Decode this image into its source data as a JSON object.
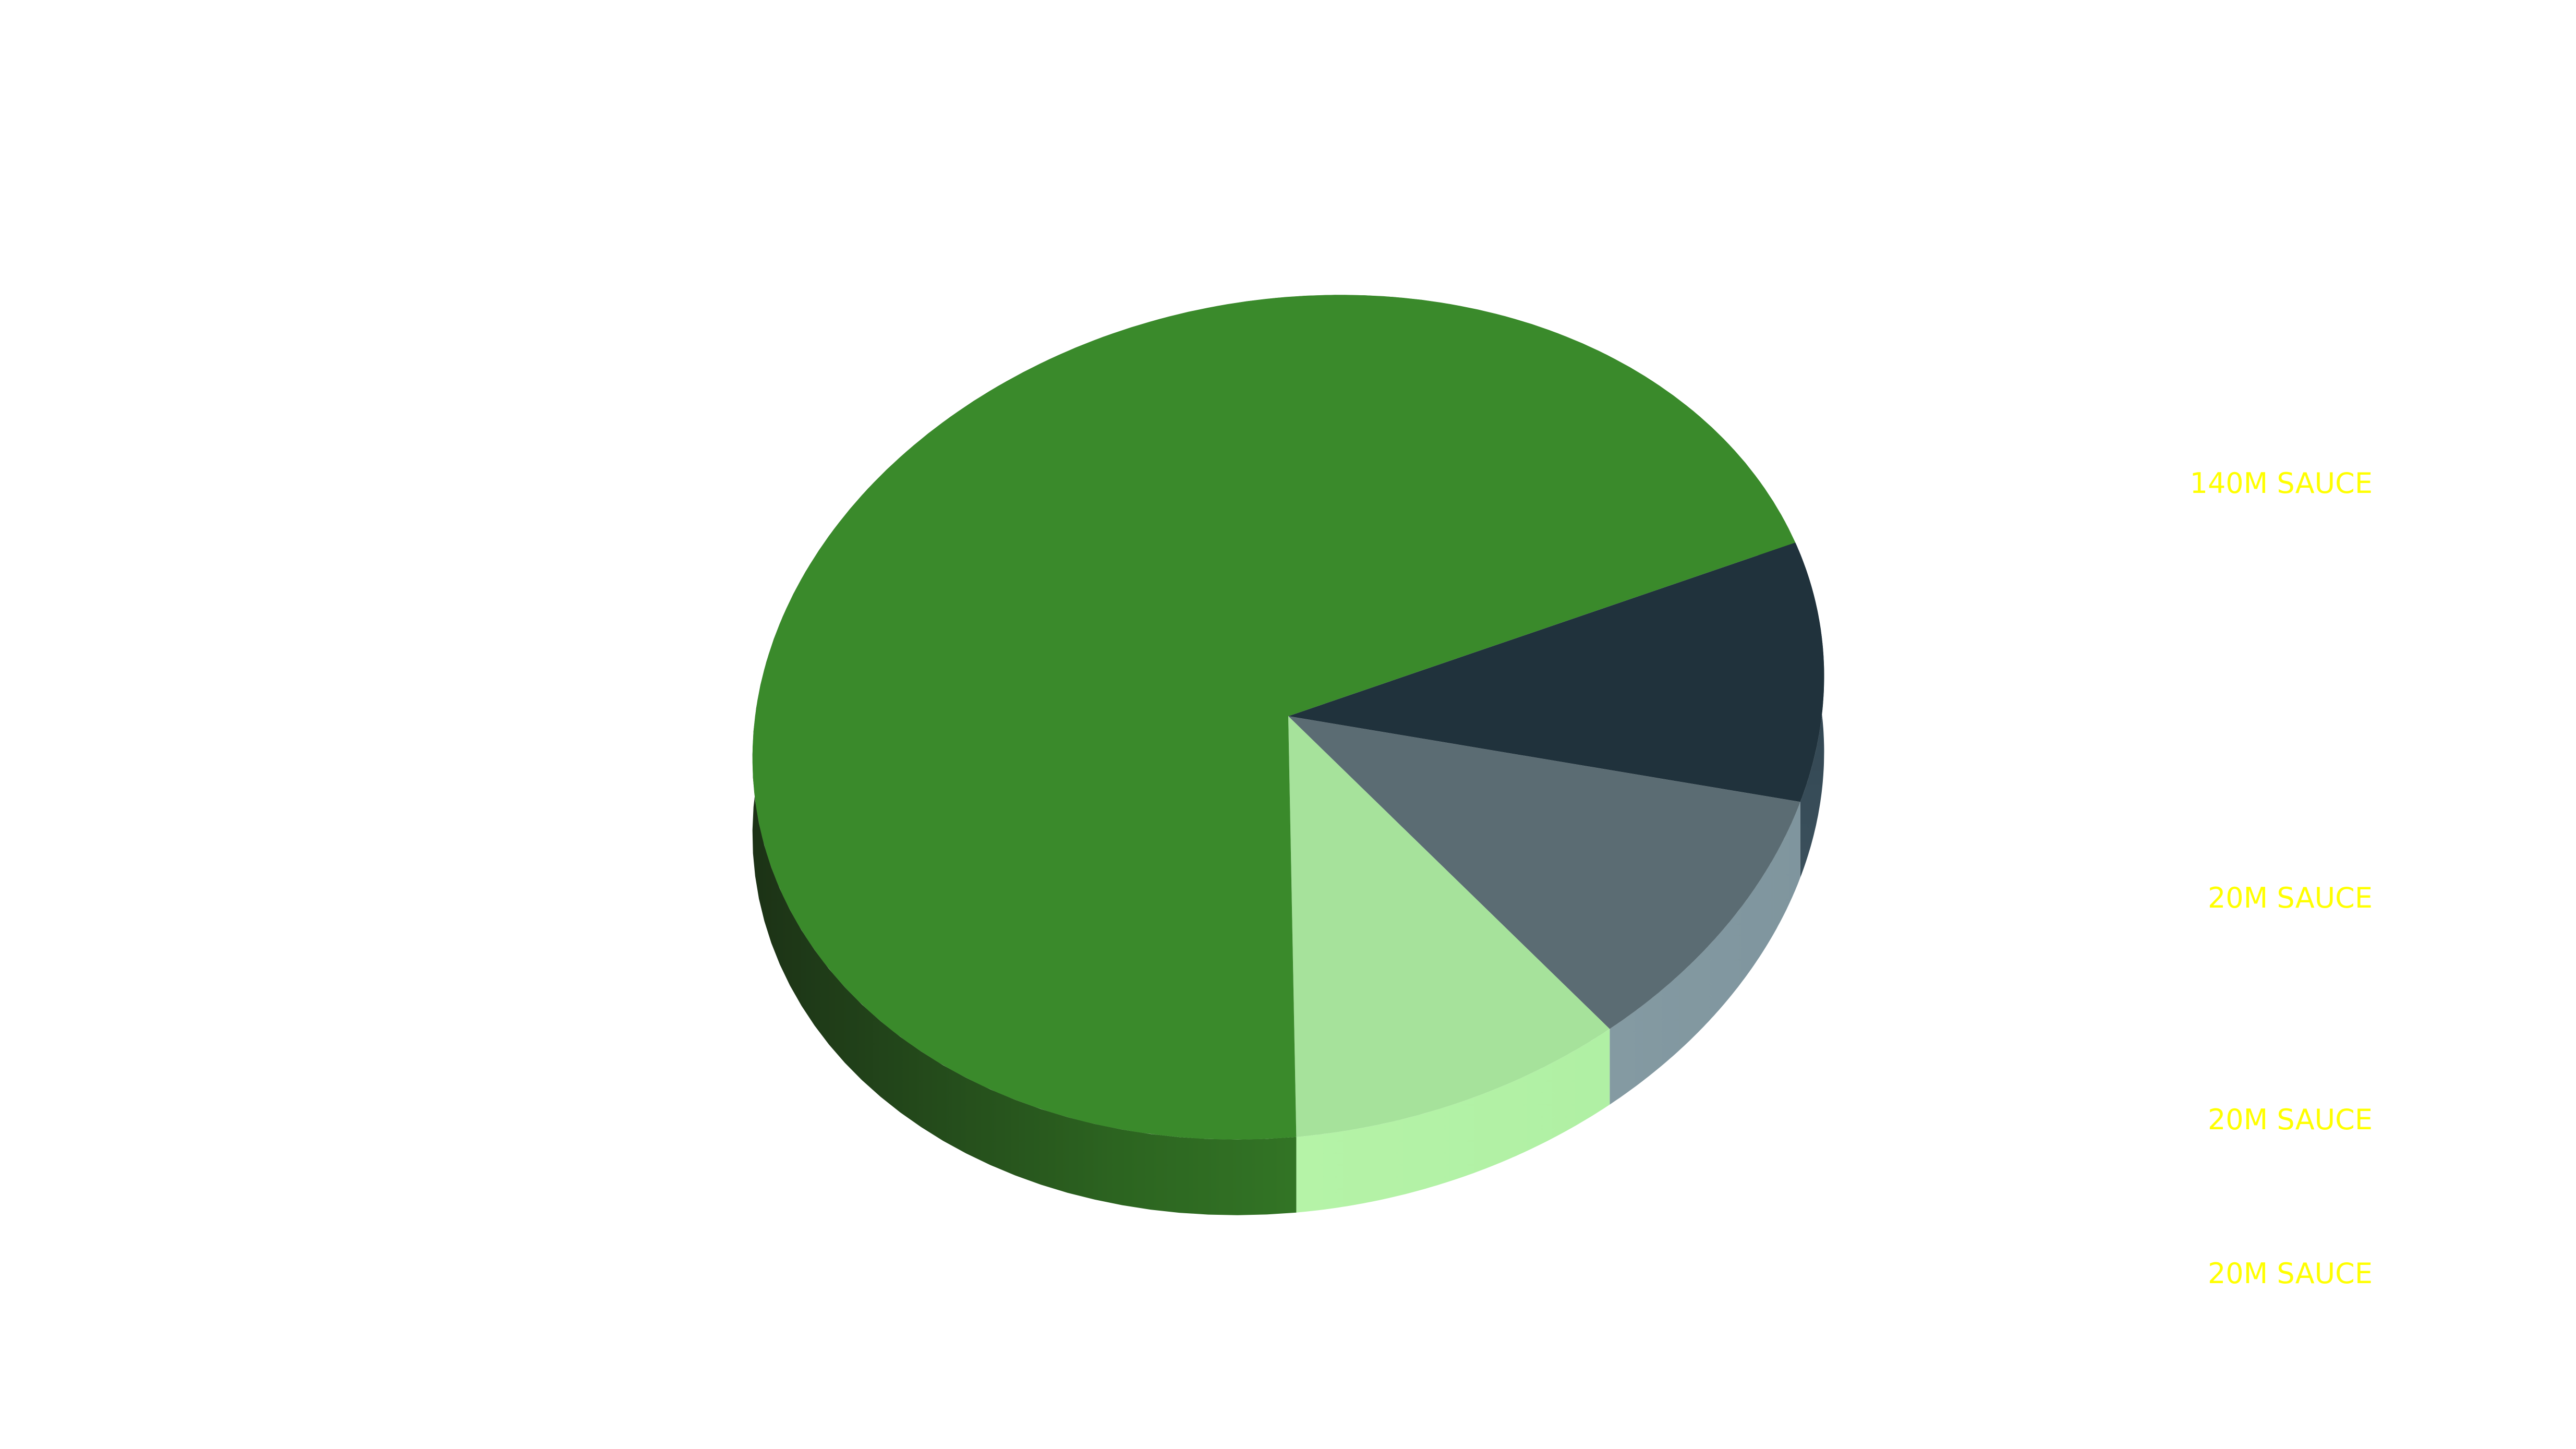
{
  "chart_data": {
    "type": "pie",
    "style": "3d",
    "slices": [
      {
        "label": "140M SAUCE",
        "value": 140,
        "color": "#3a8a2b"
      },
      {
        "label": "20M SAUCE",
        "value": 20,
        "color": "#20323c"
      },
      {
        "label": "20M SAUCE",
        "value": 20,
        "color": "#5b6c73"
      },
      {
        "label": "20M SAUCE",
        "value": 20,
        "color": "#a6e29b"
      }
    ],
    "label_color": "#ffff00",
    "legend": "right"
  }
}
